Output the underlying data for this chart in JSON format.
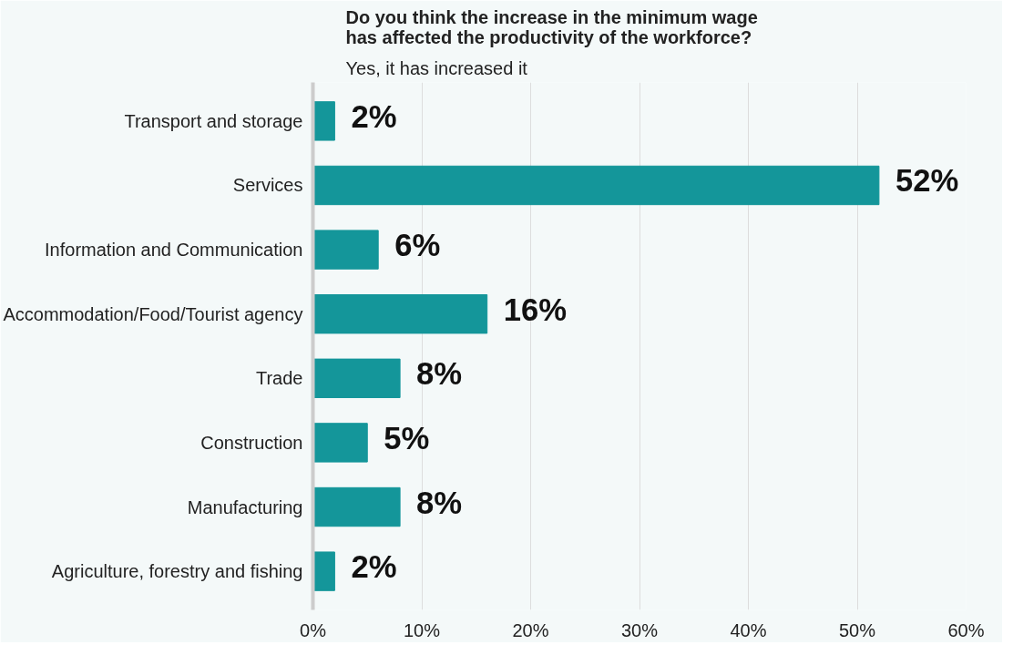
{
  "chart_data": {
    "type": "bar",
    "orientation": "horizontal",
    "title": "Do you think the increase in the minimum wage has affected the productivity of the workforce?",
    "subtitle": "Yes, it has increased it",
    "categories": [
      "Transport and storage",
      "Services",
      "Information and Communication",
      "Accommodation/Food/Tourist agency",
      "Trade",
      "Construction",
      "Manufacturing",
      "Agriculture, forestry and fishing"
    ],
    "values": [
      2,
      52,
      6,
      16,
      8,
      5,
      8,
      2
    ],
    "value_labels": [
      "2%",
      "52%",
      "6%",
      "16%",
      "8%",
      "5%",
      "8%",
      "2%"
    ],
    "color": "#14969a",
    "xlim": [
      0,
      60
    ],
    "xticks": [
      {
        "value": 0,
        "label": "0%"
      },
      {
        "value": 10,
        "label": "10%"
      },
      {
        "value": 20,
        "label": "20%"
      },
      {
        "value": 30,
        "label": "30%"
      },
      {
        "value": 40,
        "label": "40%"
      },
      {
        "value": 50,
        "label": "50%"
      },
      {
        "value": 60,
        "label": "60%"
      }
    ],
    "grid": "x"
  }
}
